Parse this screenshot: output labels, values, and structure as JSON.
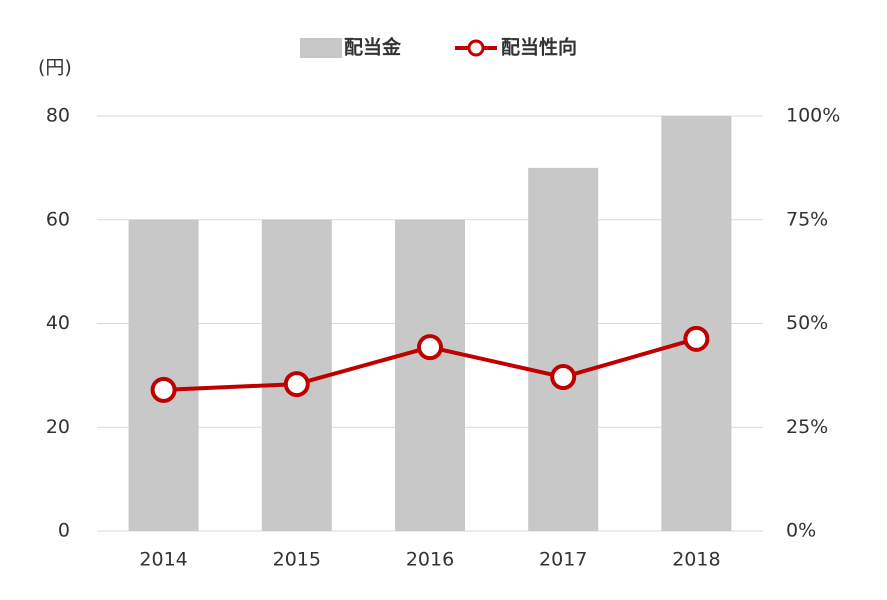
{
  "chart_data": {
    "type": "combo",
    "y_label": "(円)",
    "categories": [
      "2014",
      "2015",
      "2016",
      "2017",
      "2018"
    ],
    "series": [
      {
        "name": "配当金",
        "type": "bar",
        "color": "#c8c8c8",
        "values": [
          60,
          60,
          60,
          70,
          80
        ]
      },
      {
        "name": "配当性向",
        "type": "line",
        "color": "#c00000",
        "axis": "y2",
        "values": [
          34,
          35.4,
          44.3,
          37.1,
          46.3
        ]
      }
    ],
    "ylim": [
      0,
      80
    ],
    "yticks": [
      0,
      20,
      40,
      60,
      80
    ],
    "y2lim": [
      0,
      100
    ],
    "y2ticks": [
      {
        "value": 0,
        "label": "0%"
      },
      {
        "value": 25,
        "label": "25%"
      },
      {
        "value": 50,
        "label": "50%"
      },
      {
        "value": 75,
        "label": "75%"
      },
      {
        "value": 100,
        "label": "100%"
      }
    ],
    "grid": true,
    "legend": "top"
  }
}
